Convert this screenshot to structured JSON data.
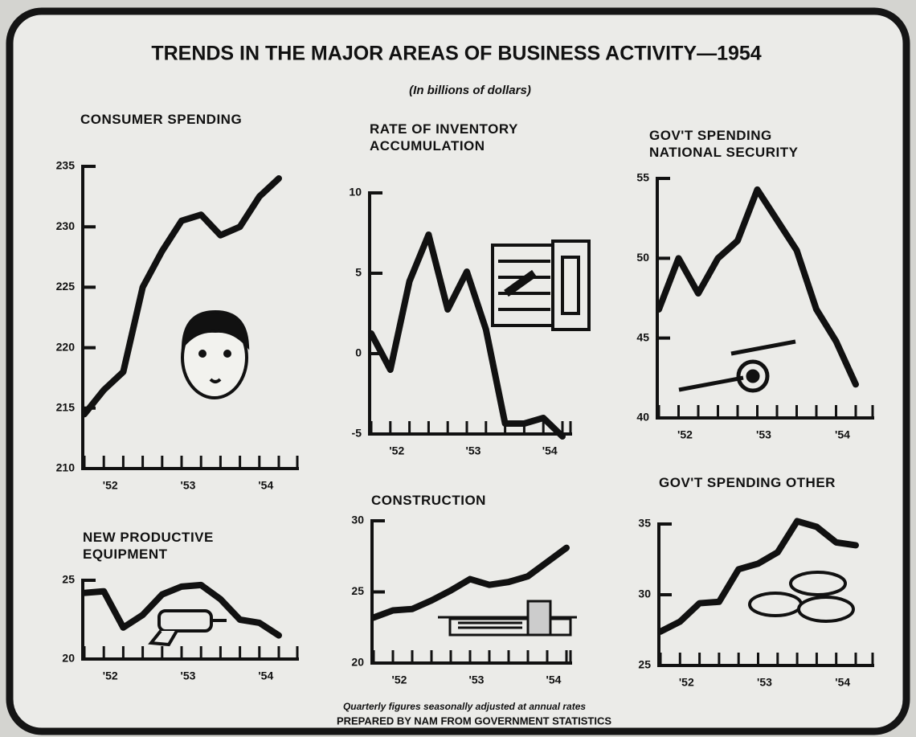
{
  "title": "TRENDS IN THE MAJOR AREAS OF BUSINESS ACTIVITY—1954",
  "subtitle": "(In billions of dollars)",
  "notes": [
    "Quarterly figures seasonally adjusted at annual rates",
    "PREPARED BY NAM FROM GOVERNMENT STATISTICS"
  ],
  "chart_data": [
    {
      "type": "line",
      "title": "CONSUMER SPENDING",
      "categories": [
        null,
        "'52",
        null,
        null,
        null,
        "'53",
        null,
        null,
        null,
        "'54",
        null
      ],
      "values": [
        214.5,
        216.5,
        218,
        225,
        228,
        230.5,
        231,
        229.3,
        230,
        232.5,
        234
      ],
      "color": "#111111",
      "ylim": [
        210,
        235
      ],
      "yticks": [
        210,
        215,
        220,
        225,
        230,
        235
      ]
    },
    {
      "type": "line",
      "title": "RATE OF INVENTORY ACCUMULATION",
      "categories": [
        null,
        "'52",
        null,
        null,
        null,
        "'53",
        null,
        null,
        null,
        "'54",
        null
      ],
      "values": [
        1.25,
        -1,
        4.5,
        7.4,
        2.75,
        5.1,
        1.5,
        -4.35,
        -4.35,
        -4,
        -5.15
      ],
      "color": "#111111",
      "ylim": [
        -5,
        10
      ],
      "yticks": [
        -5,
        0,
        5,
        10
      ]
    },
    {
      "type": "line",
      "title": "GOV'T SPENDING NATIONAL SECURITY",
      "categories": [
        null,
        "'52",
        null,
        null,
        null,
        "'53",
        null,
        null,
        null,
        "'54",
        null
      ],
      "values": [
        46.8,
        50,
        47.8,
        50,
        51.1,
        54.3,
        52.4,
        50.5,
        46.8,
        44.8,
        42.1
      ],
      "color": "#111111",
      "ylim": [
        40,
        55
      ],
      "yticks": [
        40,
        45,
        50,
        55
      ]
    },
    {
      "type": "line",
      "title": "NEW PRODUCTIVE EQUIPMENT",
      "categories": [
        null,
        "'52",
        null,
        null,
        null,
        "'53",
        null,
        null,
        null,
        "'54",
        null
      ],
      "values": [
        24.2,
        24.3,
        22,
        22.8,
        24.1,
        24.6,
        24.7,
        23.8,
        22.5,
        22.3,
        21.5
      ],
      "color": "#111111",
      "ylim": [
        20,
        25
      ],
      "yticks": [
        20,
        25
      ]
    },
    {
      "type": "line",
      "title": "CONSTRUCTION",
      "categories": [
        null,
        "'52",
        null,
        null,
        null,
        "'53",
        null,
        null,
        null,
        "'54",
        null
      ],
      "values": [
        23.2,
        23.7,
        23.8,
        24.4,
        25.1,
        25.9,
        25.5,
        25.7,
        26.1,
        27.1,
        28.1
      ],
      "color": "#111111",
      "ylim": [
        20,
        30
      ],
      "yticks": [
        20,
        25,
        30
      ]
    },
    {
      "type": "line",
      "title": "GOV'T SPENDING OTHER",
      "categories": [
        null,
        "'52",
        null,
        null,
        null,
        "'53",
        null,
        null,
        null,
        "'54",
        null
      ],
      "values": [
        27.4,
        28.1,
        29.4,
        29.5,
        31.8,
        32.2,
        33,
        35.2,
        34.8,
        33.7,
        33.5
      ],
      "color": "#111111",
      "ylim": [
        25,
        35
      ],
      "yticks": [
        25,
        30,
        35
      ]
    }
  ]
}
